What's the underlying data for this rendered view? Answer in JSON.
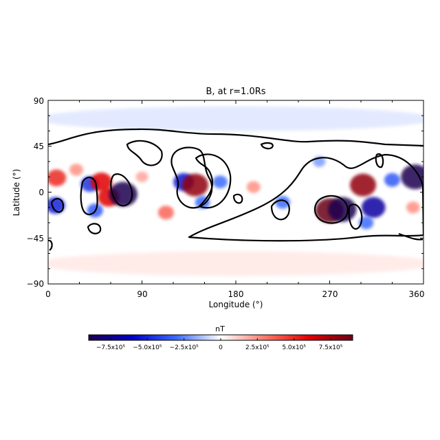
{
  "chart_data": {
    "type": "heatmap",
    "title": "B, at r=1.0Rs",
    "xlabel": "Longitude (°)",
    "ylabel": "Latitude (°)",
    "xlim": [
      0,
      360
    ],
    "ylim": [
      -90,
      90
    ],
    "xticks": [
      "0",
      "90",
      "180",
      "270",
      "360"
    ],
    "yticks": [
      "90",
      "45",
      "0",
      "−45",
      "−90"
    ],
    "colorbar": {
      "label": "nT",
      "range": [
        -900000.0,
        900000.0
      ],
      "ticks": [
        "−7.5x10⁵",
        "−5.0x10⁵",
        "−2.5x10⁵",
        "0",
        "2.5x10⁵",
        "5.0x10⁵",
        "7.5x10⁵"
      ],
      "colors": [
        "#1a0050",
        "#0000c8",
        "#3c6cff",
        "#ffffff",
        "#ff7a6a",
        "#e00000",
        "#6a0014"
      ]
    },
    "features": [
      {
        "lon": 8,
        "lat": 14,
        "value": 500000
      },
      {
        "lon": 27,
        "lat": 22,
        "value": 250000
      },
      {
        "lon": 7,
        "lat": -13,
        "value": -500000
      },
      {
        "lon": 40,
        "lat": 8,
        "value": -450000
      },
      {
        "lon": 51,
        "lat": 10,
        "value": 600000
      },
      {
        "lon": 58,
        "lat": -5,
        "value": 600000
      },
      {
        "lon": 72,
        "lat": -2,
        "value": -900000
      },
      {
        "lon": 45,
        "lat": -18,
        "value": -350000
      },
      {
        "lon": 90,
        "lat": 15,
        "value": 200000
      },
      {
        "lon": 113,
        "lat": -20,
        "value": 350000
      },
      {
        "lon": 130,
        "lat": 10,
        "value": -550000
      },
      {
        "lon": 141,
        "lat": 7,
        "value": 800000
      },
      {
        "lon": 148,
        "lat": -10,
        "value": -300000
      },
      {
        "lon": 165,
        "lat": 10,
        "value": -300000
      },
      {
        "lon": 197,
        "lat": 5,
        "value": 250000
      },
      {
        "lon": 225,
        "lat": -10,
        "value": -300000
      },
      {
        "lon": 270,
        "lat": -18,
        "value": 900000
      },
      {
        "lon": 282,
        "lat": -17,
        "value": -900000
      },
      {
        "lon": 302,
        "lat": 7,
        "value": 800000
      },
      {
        "lon": 312,
        "lat": -15,
        "value": -700000
      },
      {
        "lon": 305,
        "lat": -30,
        "value": -300000
      },
      {
        "lon": 330,
        "lat": 12,
        "value": -350000
      },
      {
        "lon": 352,
        "lat": 15,
        "value": -900000
      },
      {
        "lon": 350,
        "lat": -15,
        "value": 250000
      },
      {
        "lon": 260,
        "lat": 30,
        "value": -200000
      },
      {
        "lon": 180,
        "lat": 72,
        "value": -120000
      },
      {
        "lon": 180,
        "lat": -70,
        "value": 120000
      }
    ],
    "contours": "zero-level contour lines"
  }
}
